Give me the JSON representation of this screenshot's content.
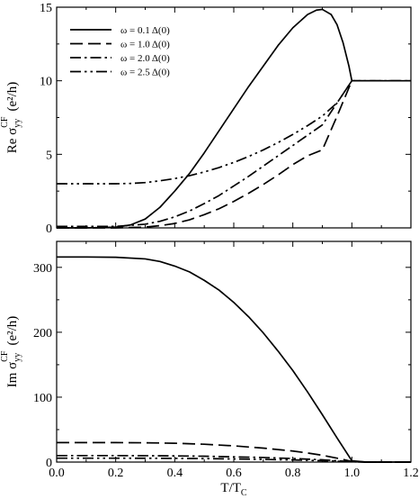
{
  "chart_data": [
    {
      "type": "line",
      "panel": "top",
      "xlabel": "",
      "ylabel": {
        "prefix": "Re σ",
        "sub": "yy",
        "sup": "CF",
        "unit": "(e²/h)"
      },
      "xlim": [
        0.0,
        1.2
      ],
      "ylim": [
        0,
        15
      ],
      "yticks": [
        "0",
        "5",
        "10",
        "15"
      ],
      "legend": {
        "placement": "top-left",
        "entries": [
          {
            "label": "ω = 0.1 Δ(0)",
            "dash": "solid"
          },
          {
            "label": "ω = 1.0 Δ(0)",
            "dash": "dashed"
          },
          {
            "label": "ω = 2.0 Δ(0)",
            "dash": "dashdot"
          },
          {
            "label": "ω = 2.5 Δ(0)",
            "dash": "dashdotdot"
          }
        ]
      },
      "series": [
        {
          "name": "ω = 0.1 Δ(0)",
          "dash": "solid",
          "x": [
            0.0,
            0.1,
            0.2,
            0.25,
            0.3,
            0.35,
            0.4,
            0.45,
            0.5,
            0.55,
            0.6,
            0.65,
            0.7,
            0.75,
            0.8,
            0.85,
            0.88,
            0.9,
            0.93,
            0.95,
            0.97,
            0.99,
            1.0,
            1.05,
            1.1,
            1.15,
            1.2
          ],
          "y": [
            0.0,
            0.0,
            0.05,
            0.2,
            0.6,
            1.4,
            2.5,
            3.7,
            5.1,
            6.6,
            8.1,
            9.6,
            11.0,
            12.4,
            13.6,
            14.5,
            14.8,
            14.85,
            14.5,
            13.8,
            12.6,
            11.0,
            10.0,
            10.0,
            10.0,
            10.0,
            10.0
          ]
        },
        {
          "name": "ω = 1.0 Δ(0)",
          "dash": "dashed",
          "x": [
            0.0,
            0.1,
            0.2,
            0.3,
            0.35,
            0.4,
            0.45,
            0.5,
            0.55,
            0.6,
            0.65,
            0.7,
            0.75,
            0.8,
            0.85,
            0.9,
            0.95,
            1.0,
            1.05,
            1.1,
            1.15,
            1.2
          ],
          "y": [
            0.0,
            0.0,
            0.0,
            0.05,
            0.15,
            0.3,
            0.55,
            0.9,
            1.3,
            1.8,
            2.35,
            2.95,
            3.6,
            4.3,
            4.9,
            5.3,
            7.6,
            10.0,
            10.0,
            10.0,
            10.0,
            10.0
          ]
        },
        {
          "name": "ω = 2.0 Δ(0)",
          "dash": "dashdot",
          "x": [
            0.0,
            0.1,
            0.2,
            0.3,
            0.35,
            0.4,
            0.45,
            0.5,
            0.55,
            0.6,
            0.65,
            0.7,
            0.75,
            0.8,
            0.85,
            0.9,
            0.95,
            1.0,
            1.05,
            1.1,
            1.15,
            1.2
          ],
          "y": [
            0.1,
            0.1,
            0.1,
            0.25,
            0.45,
            0.75,
            1.15,
            1.65,
            2.2,
            2.85,
            3.5,
            4.2,
            4.9,
            5.6,
            6.3,
            7.0,
            8.5,
            10.0,
            10.0,
            10.0,
            10.0,
            10.0
          ]
        },
        {
          "name": "ω = 2.5 Δ(0)",
          "dash": "dashdotdot",
          "x": [
            0.0,
            0.1,
            0.2,
            0.25,
            0.3,
            0.35,
            0.4,
            0.45,
            0.5,
            0.55,
            0.6,
            0.65,
            0.7,
            0.75,
            0.8,
            0.85,
            0.9,
            0.95,
            1.0,
            1.05,
            1.1,
            1.15,
            1.2
          ],
          "y": [
            3.0,
            3.0,
            3.0,
            3.02,
            3.08,
            3.2,
            3.35,
            3.55,
            3.8,
            4.1,
            4.45,
            4.85,
            5.3,
            5.8,
            6.35,
            6.95,
            7.6,
            8.5,
            10.0,
            10.0,
            10.0,
            10.0,
            10.0
          ]
        }
      ]
    },
    {
      "type": "line",
      "panel": "bottom",
      "xlabel": {
        "main": "T/T",
        "sub": "C"
      },
      "ylabel": {
        "prefix": "Im σ",
        "sub": "yy",
        "sup": "CF",
        "unit": "(e²/h)"
      },
      "xlim": [
        0.0,
        1.2
      ],
      "ylim": [
        0,
        340
      ],
      "xticks": [
        "0.0",
        "0.2",
        "0.4",
        "0.6",
        "0.8",
        "1.0",
        "1.2"
      ],
      "yticks": [
        "0",
        "100",
        "200",
        "300"
      ],
      "series": [
        {
          "name": "ω = 0.1 Δ(0)",
          "dash": "solid",
          "x": [
            0.0,
            0.1,
            0.2,
            0.3,
            0.35,
            0.4,
            0.45,
            0.5,
            0.55,
            0.6,
            0.65,
            0.7,
            0.75,
            0.8,
            0.85,
            0.9,
            0.95,
            1.0,
            1.05,
            1.1,
            1.15,
            1.2
          ],
          "y": [
            316,
            316,
            315.5,
            313,
            309,
            302,
            293,
            280,
            265,
            246,
            224,
            199,
            171,
            141,
            108,
            73,
            37,
            2,
            0,
            0,
            0,
            0
          ]
        },
        {
          "name": "ω = 1.0 Δ(0)",
          "dash": "dashed",
          "x": [
            0.0,
            0.1,
            0.2,
            0.3,
            0.4,
            0.5,
            0.6,
            0.7,
            0.8,
            0.85,
            0.9,
            0.95,
            1.0,
            1.05,
            1.1,
            1.15,
            1.2
          ],
          "y": [
            30,
            30,
            30,
            29.7,
            29,
            27.5,
            25,
            21.5,
            17,
            14,
            10.5,
            6,
            1,
            0,
            0,
            0,
            0
          ]
        },
        {
          "name": "ω = 2.0 Δ(0)",
          "dash": "dashdot",
          "x": [
            0.0,
            0.1,
            0.2,
            0.3,
            0.4,
            0.5,
            0.6,
            0.7,
            0.8,
            0.9,
            1.0,
            1.05,
            1.1,
            1.15,
            1.2
          ],
          "y": [
            10,
            10,
            10,
            9.8,
            9.5,
            9,
            8,
            7,
            5.5,
            3.5,
            0.5,
            0,
            0,
            0,
            0
          ]
        },
        {
          "name": "ω = 2.5 Δ(0)",
          "dash": "dashdotdot",
          "x": [
            0.0,
            0.1,
            0.2,
            0.3,
            0.4,
            0.5,
            0.6,
            0.7,
            0.8,
            0.9,
            1.0,
            1.05,
            1.1,
            1.15,
            1.2
          ],
          "y": [
            6,
            6,
            6,
            5.9,
            5.7,
            5.4,
            4.8,
            4.1,
            3.3,
            2.1,
            0.5,
            0,
            0,
            0,
            0
          ]
        }
      ]
    }
  ]
}
